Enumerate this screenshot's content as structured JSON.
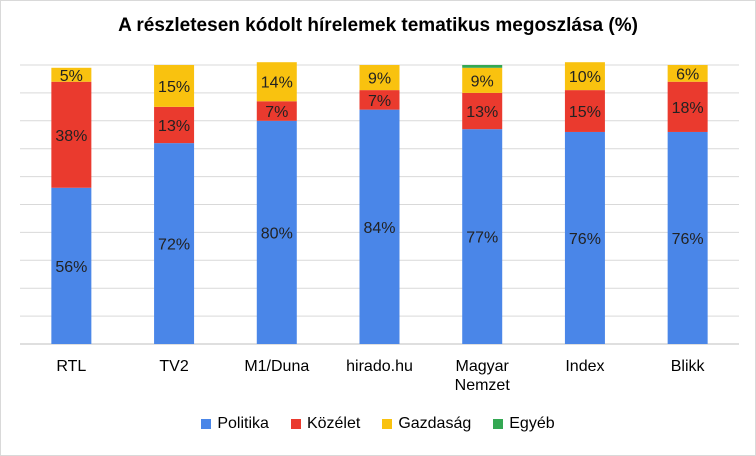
{
  "chart_data": {
    "type": "bar",
    "stacked": true,
    "title": "A részletesen kódolt hírelemek tematikus megoszlása (%)",
    "categories": [
      "RTL",
      "TV2",
      "M1/Duna",
      "hirado.hu",
      "Magyar Nemzet",
      "Index",
      "Blikk"
    ],
    "category_lines": [
      [
        "RTL"
      ],
      [
        "TV2"
      ],
      [
        "M1/Duna"
      ],
      [
        "hirado.hu"
      ],
      [
        "Magyar",
        "Nemzet"
      ],
      [
        "Index"
      ],
      [
        "Blikk"
      ]
    ],
    "ylim": [
      0,
      100
    ],
    "grid": true,
    "legend_position": "bottom",
    "series": [
      {
        "name": "Politika",
        "color": "#4a86e8",
        "values": [
          56,
          72,
          80,
          84,
          77,
          76,
          76
        ],
        "labels": [
          "56%",
          "72%",
          "80%",
          "84%",
          "77%",
          "76%",
          "76%"
        ]
      },
      {
        "name": "Közélet",
        "color": "#ea3a2e",
        "values": [
          38,
          13,
          7,
          7,
          13,
          15,
          18
        ],
        "labels": [
          "38%",
          "13%",
          "7%",
          "7%",
          "13%",
          "15%",
          "18%"
        ]
      },
      {
        "name": "Gazdaság",
        "color": "#f9c20f",
        "values": [
          5,
          15,
          14,
          9,
          9,
          10,
          6
        ],
        "labels": [
          "5%",
          "15%",
          "14%",
          "9%",
          "9%",
          "10%",
          "6%"
        ]
      },
      {
        "name": "Egyéb",
        "color": "#34a853",
        "values": [
          0,
          0,
          0,
          0,
          1,
          0,
          0
        ],
        "labels": [
          "",
          "",
          "",
          "",
          "",
          "",
          ""
        ]
      }
    ]
  }
}
